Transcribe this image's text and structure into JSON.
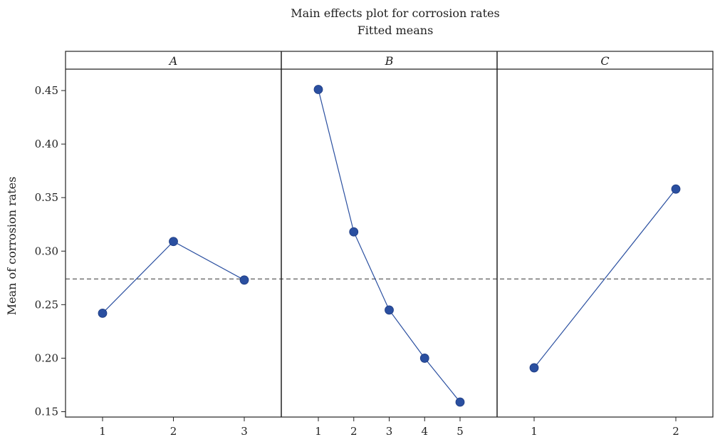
{
  "chart_data": {
    "type": "line",
    "title": "Main effects plot for corrosion rates",
    "subtitle": "Fitted means",
    "ylabel": "Mean of corrosion rates",
    "ylim": [
      0.145,
      0.47
    ],
    "yticks": [
      0.15,
      0.2,
      0.25,
      0.3,
      0.35,
      0.4,
      0.45
    ],
    "ytick_labels": [
      "0.15",
      "0.20",
      "0.25",
      "0.30",
      "0.35",
      "0.40",
      "0.45"
    ],
    "reference_mean": 0.274,
    "reference_line_style": "dashed",
    "marker_color": "#2a4fa0",
    "line_color": "#2a4fa0",
    "panels": [
      {
        "name": "A",
        "levels": [
          "1",
          "2",
          "3"
        ],
        "values": [
          0.242,
          0.309,
          0.273
        ]
      },
      {
        "name": "B",
        "levels": [
          "1",
          "2",
          "3",
          "4",
          "5"
        ],
        "values": [
          0.451,
          0.318,
          0.245,
          0.2,
          0.159
        ]
      },
      {
        "name": "C",
        "levels": [
          "1",
          "2"
        ],
        "values": [
          0.191,
          0.358
        ]
      }
    ]
  }
}
